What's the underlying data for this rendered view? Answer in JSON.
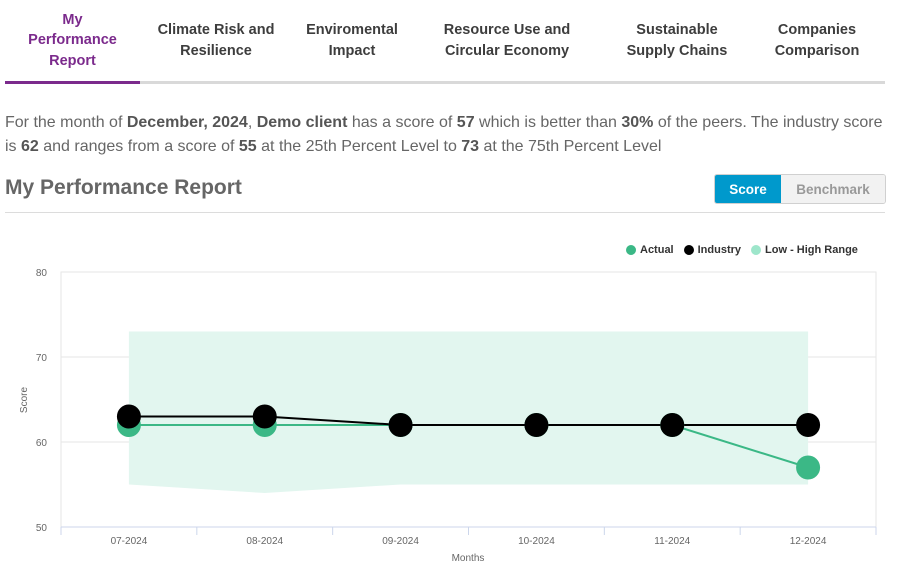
{
  "tabs": [
    {
      "label_lines": [
        "My",
        "Performance",
        "Report"
      ],
      "active": true
    },
    {
      "label_lines": [
        "Climate Risk and",
        "Resilience"
      ],
      "active": false
    },
    {
      "label_lines": [
        "Enviromental",
        "Impact"
      ],
      "active": false
    },
    {
      "label_lines": [
        "Resource Use and",
        "Circular Economy"
      ],
      "active": false
    },
    {
      "label_lines": [
        "Sustainable",
        "Supply Chains"
      ],
      "active": false
    },
    {
      "label_lines": [
        "Companies",
        "Comparison"
      ],
      "active": false
    }
  ],
  "summary": {
    "p1": "For the month of ",
    "month": "December, 2024",
    "p2": ", ",
    "client": "Demo client",
    "p3": " has a score of ",
    "score": "57",
    "p4": " which is better than ",
    "percent": "30%",
    "p5": " of the peers. The industry score is ",
    "industry": "62",
    "p6": " and ranges from a score of ",
    "low": "55",
    "p7": " at the 25th Percent Level to ",
    "high": "73",
    "p8": " at the 75th Percent Level"
  },
  "section": {
    "title": "My Performance Report",
    "toggle": {
      "score_label": "Score",
      "benchmark_label": "Benchmark",
      "selected": "Score"
    }
  },
  "colors": {
    "accent_purple": "#7b2a8c",
    "toggle_blue": "#0099cc",
    "actual": "#3bb886",
    "industry": "#000000",
    "range": "#e2f6ef",
    "range_legend": "#9ee6cb"
  },
  "chart_data": {
    "type": "line",
    "title": "",
    "xlabel": "Months",
    "ylabel": "Score",
    "ylim": [
      50,
      80
    ],
    "yticks": [
      50,
      60,
      70,
      80
    ],
    "grid": true,
    "legend_position": "top-right",
    "categories": [
      "07-2024",
      "08-2024",
      "09-2024",
      "10-2024",
      "11-2024",
      "12-2024"
    ],
    "series": [
      {
        "name": "Actual",
        "values": [
          62,
          62,
          62,
          62,
          62,
          57
        ]
      },
      {
        "name": "Industry",
        "values": [
          63,
          63,
          62,
          62,
          62,
          62
        ]
      },
      {
        "name": "Low - High Range",
        "type": "area-range",
        "low": [
          55,
          54,
          55,
          55,
          55,
          55
        ],
        "high": [
          73,
          73,
          73,
          73,
          73,
          73
        ]
      }
    ]
  }
}
